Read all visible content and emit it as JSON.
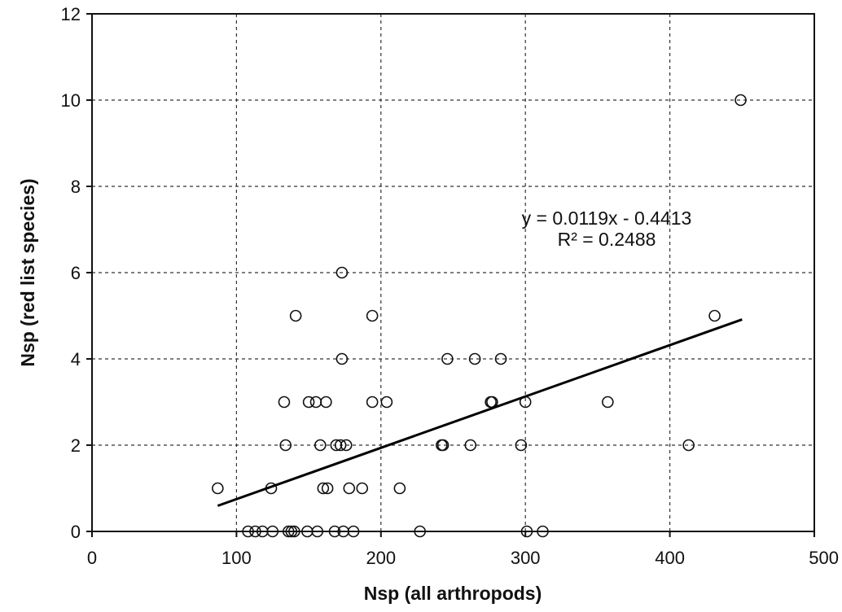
{
  "chart_data": {
    "type": "scatter",
    "title": "",
    "xlabel": "Nsp (all arthropods)",
    "ylabel": "Nsp (red list species)",
    "xlim": [
      0,
      500
    ],
    "ylim": [
      0,
      12
    ],
    "xticks": [
      0,
      100,
      200,
      300,
      400,
      500
    ],
    "yticks": [
      0,
      2,
      4,
      6,
      8,
      10,
      12
    ],
    "grid": true,
    "grid_style": "dashed",
    "series": [
      {
        "marker": "open-circle",
        "points": [
          [
            87,
            1
          ],
          [
            108,
            0
          ],
          [
            113,
            0
          ],
          [
            118,
            0
          ],
          [
            124,
            1
          ],
          [
            125,
            0
          ],
          [
            133,
            3
          ],
          [
            134,
            2
          ],
          [
            136,
            0
          ],
          [
            138,
            0
          ],
          [
            140,
            0
          ],
          [
            141,
            5
          ],
          [
            149,
            0
          ],
          [
            150,
            3
          ],
          [
            155,
            3
          ],
          [
            156,
            0
          ],
          [
            158,
            2
          ],
          [
            160,
            1
          ],
          [
            162,
            3
          ],
          [
            163,
            1
          ],
          [
            168,
            0
          ],
          [
            169,
            2
          ],
          [
            172,
            2
          ],
          [
            173,
            6
          ],
          [
            173,
            4
          ],
          [
            174,
            0
          ],
          [
            176,
            2
          ],
          [
            178,
            1
          ],
          [
            181,
            0
          ],
          [
            187,
            1
          ],
          [
            194,
            5
          ],
          [
            194,
            3
          ],
          [
            204,
            3
          ],
          [
            213,
            1
          ],
          [
            227,
            0
          ],
          [
            242,
            2
          ],
          [
            243,
            2
          ],
          [
            246,
            4
          ],
          [
            262,
            2
          ],
          [
            265,
            4
          ],
          [
            276,
            3
          ],
          [
            277,
            3
          ],
          [
            283,
            4
          ],
          [
            297,
            2
          ],
          [
            300,
            3
          ],
          [
            301,
            0
          ],
          [
            312,
            0
          ],
          [
            357,
            3
          ],
          [
            413,
            2
          ],
          [
            431,
            5
          ],
          [
            449,
            10
          ]
        ]
      }
    ],
    "trendline": {
      "type": "linear",
      "slope": 0.0119,
      "intercept": -0.4413,
      "x_range": [
        87,
        450
      ]
    },
    "annotations": {
      "equation": "y = 0.0119x - 0.4413",
      "r_squared": "R² = 0.2488"
    }
  }
}
